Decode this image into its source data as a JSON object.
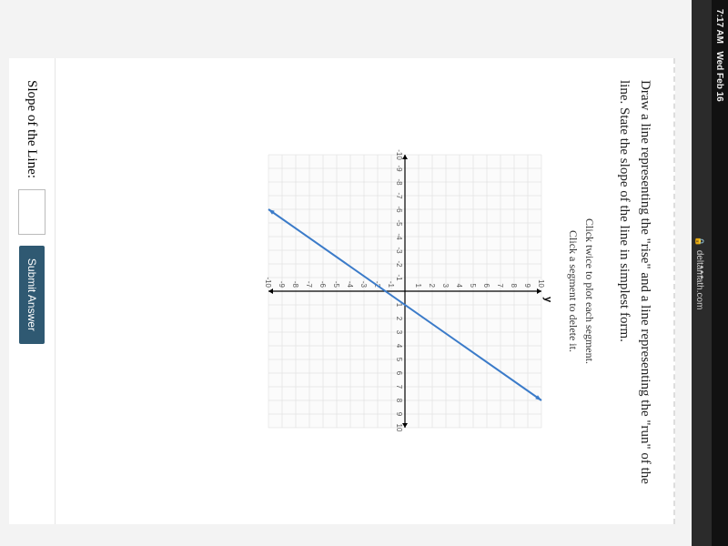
{
  "status": {
    "time": "7:17 AM",
    "date": "Wed Feb 16"
  },
  "browser": {
    "domain": "deltamath.com",
    "dots": "•••"
  },
  "problem": {
    "prompt": "Draw a line representing the \"rise\" and a line representing the \"run\" of the line. State the slope of the line in simplest form.",
    "hint1": "Click twice to plot each segment.",
    "hint2": "Click a segment to delete it."
  },
  "graph": {
    "type": "line",
    "x_min": -10,
    "x_max": 10,
    "y_min": -10,
    "y_max": 10,
    "tick_step": 1,
    "grid_color": "#d9d9d9",
    "axis_color": "#000000",
    "background_color": "#fbfbfb",
    "line_color": "#3b7bc9",
    "line_width": 2,
    "y_axis_title": "y",
    "line_points": [
      [
        -6,
        -10
      ],
      [
        8,
        10
      ]
    ],
    "arrowheads": true,
    "tick_labels_x": [
      -10,
      -9,
      -8,
      -7,
      -6,
      -5,
      -4,
      -3,
      -2,
      -1,
      1,
      2,
      3,
      4,
      5,
      6,
      7,
      8,
      9,
      10
    ],
    "tick_labels_y": [
      -10,
      -9,
      -8,
      -7,
      -6,
      -5,
      -4,
      -3,
      -2,
      -1,
      1,
      2,
      3,
      4,
      5,
      6,
      7,
      8,
      9,
      10
    ]
  },
  "answer": {
    "label": "Slope of the Line:",
    "submit_label": "Submit Answer"
  }
}
